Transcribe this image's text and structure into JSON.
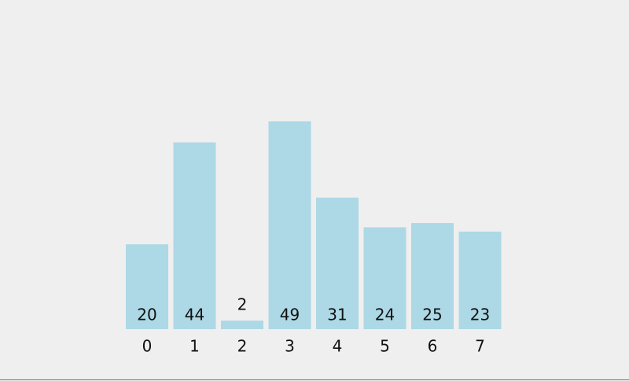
{
  "chart_data": {
    "type": "bar",
    "categories": [
      "0",
      "1",
      "2",
      "3",
      "4",
      "5",
      "6",
      "7"
    ],
    "values": [
      20,
      44,
      2,
      49,
      31,
      24,
      25,
      23
    ],
    "color": "#add8e6"
  }
}
